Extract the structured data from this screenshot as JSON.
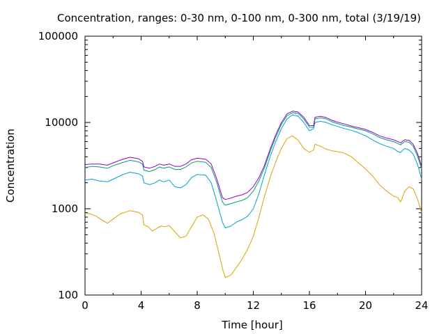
{
  "chart_data": {
    "type": "line",
    "title": "Concentration, ranges: 0-30 nm, 0-100 nm, 0-300 nm, total (3/19/19)",
    "xlabel": "Time [hour]",
    "ylabel": "Concentration",
    "xlim": [
      0,
      24
    ],
    "ylim": [
      100,
      100000
    ],
    "yscale": "log",
    "grid": false,
    "legend": "none",
    "x_ticks": [
      0,
      4,
      8,
      12,
      16,
      20,
      24
    ],
    "x_tick_labels": [
      "0",
      "4",
      "8",
      "12",
      "16",
      "20",
      "24"
    ],
    "y_ticks": [
      100,
      1000,
      10000,
      100000
    ],
    "y_tick_labels": [
      "100",
      "1000",
      "10000",
      "100000"
    ],
    "series": [
      {
        "color": "#e0a000",
        "points": [
          [
            0,
            890
          ],
          [
            0.4,
            870
          ],
          [
            0.8,
            820
          ],
          [
            1.2,
            740
          ],
          [
            1.6,
            680
          ],
          [
            2.0,
            760
          ],
          [
            2.5,
            870
          ],
          [
            3.2,
            950
          ],
          [
            3.8,
            910
          ],
          [
            4.1,
            850
          ],
          [
            4.2,
            650
          ],
          [
            4.5,
            620
          ],
          [
            4.8,
            550
          ],
          [
            5.1,
            590
          ],
          [
            5.4,
            630
          ],
          [
            5.7,
            620
          ],
          [
            6.0,
            640
          ],
          [
            6.4,
            540
          ],
          [
            6.8,
            460
          ],
          [
            7.2,
            480
          ],
          [
            7.6,
            620
          ],
          [
            8.0,
            800
          ],
          [
            8.4,
            850
          ],
          [
            8.8,
            760
          ],
          [
            9.2,
            520
          ],
          [
            9.6,
            280
          ],
          [
            9.85,
            190
          ],
          [
            10.0,
            160
          ],
          [
            10.4,
            170
          ],
          [
            10.8,
            210
          ],
          [
            11.2,
            260
          ],
          [
            11.6,
            340
          ],
          [
            12.0,
            480
          ],
          [
            12.4,
            800
          ],
          [
            12.8,
            1400
          ],
          [
            13.2,
            2300
          ],
          [
            13.6,
            3500
          ],
          [
            14.0,
            5000
          ],
          [
            14.4,
            6500
          ],
          [
            14.8,
            7000
          ],
          [
            15.2,
            6200
          ],
          [
            15.6,
            5000
          ],
          [
            16.0,
            4500
          ],
          [
            16.3,
            4800
          ],
          [
            16.4,
            5600
          ],
          [
            16.8,
            5300
          ],
          [
            17.2,
            4900
          ],
          [
            17.6,
            4700
          ],
          [
            18.0,
            4600
          ],
          [
            18.5,
            4400
          ],
          [
            19.0,
            4000
          ],
          [
            19.5,
            3400
          ],
          [
            20.0,
            2900
          ],
          [
            20.5,
            2400
          ],
          [
            21.0,
            1900
          ],
          [
            21.5,
            1600
          ],
          [
            22.0,
            1400
          ],
          [
            22.3,
            1350
          ],
          [
            22.5,
            1200
          ],
          [
            22.8,
            1600
          ],
          [
            23.1,
            1800
          ],
          [
            23.4,
            1700
          ],
          [
            23.7,
            1300
          ],
          [
            24.0,
            900
          ]
        ]
      },
      {
        "color": "#009ed8",
        "points": [
          [
            0,
            2150
          ],
          [
            0.5,
            2200
          ],
          [
            1.0,
            2100
          ],
          [
            1.6,
            2050
          ],
          [
            2.0,
            2200
          ],
          [
            2.6,
            2450
          ],
          [
            3.2,
            2650
          ],
          [
            3.8,
            2550
          ],
          [
            4.1,
            2400
          ],
          [
            4.2,
            2000
          ],
          [
            4.6,
            1900
          ],
          [
            5.0,
            2000
          ],
          [
            5.3,
            2150
          ],
          [
            5.6,
            2050
          ],
          [
            6.0,
            2150
          ],
          [
            6.4,
            1800
          ],
          [
            6.8,
            1750
          ],
          [
            7.2,
            1900
          ],
          [
            7.6,
            2300
          ],
          [
            8.0,
            2500
          ],
          [
            8.6,
            2450
          ],
          [
            9.0,
            2000
          ],
          [
            9.4,
            1200
          ],
          [
            9.8,
            700
          ],
          [
            10.0,
            600
          ],
          [
            10.4,
            630
          ],
          [
            10.8,
            700
          ],
          [
            11.2,
            750
          ],
          [
            11.6,
            820
          ],
          [
            12.0,
            1000
          ],
          [
            12.4,
            1500
          ],
          [
            12.8,
            2500
          ],
          [
            13.2,
            4000
          ],
          [
            13.6,
            6000
          ],
          [
            14.0,
            8500
          ],
          [
            14.4,
            11000
          ],
          [
            14.8,
            12300
          ],
          [
            15.2,
            11800
          ],
          [
            15.6,
            10000
          ],
          [
            16.0,
            8000
          ],
          [
            16.3,
            8500
          ],
          [
            16.4,
            10000
          ],
          [
            16.8,
            10300
          ],
          [
            17.2,
            10000
          ],
          [
            17.6,
            9400
          ],
          [
            18.0,
            9000
          ],
          [
            18.5,
            8500
          ],
          [
            19.0,
            8100
          ],
          [
            19.5,
            7600
          ],
          [
            20.0,
            7000
          ],
          [
            20.5,
            6300
          ],
          [
            21.0,
            5700
          ],
          [
            21.5,
            5300
          ],
          [
            22.0,
            5000
          ],
          [
            22.3,
            4600
          ],
          [
            22.5,
            4500
          ],
          [
            22.8,
            5000
          ],
          [
            23.1,
            4800
          ],
          [
            23.4,
            4300
          ],
          [
            23.7,
            3300
          ],
          [
            24.0,
            2200
          ]
        ]
      },
      {
        "color": "#009e73",
        "points": [
          [
            0,
            3000
          ],
          [
            0.5,
            3100
          ],
          [
            1.0,
            3050
          ],
          [
            1.6,
            2950
          ],
          [
            2.0,
            3150
          ],
          [
            2.6,
            3400
          ],
          [
            3.2,
            3650
          ],
          [
            3.8,
            3500
          ],
          [
            4.1,
            3300
          ],
          [
            4.2,
            2800
          ],
          [
            4.6,
            2700
          ],
          [
            5.0,
            2850
          ],
          [
            5.3,
            3050
          ],
          [
            5.6,
            2950
          ],
          [
            6.0,
            3050
          ],
          [
            6.4,
            2850
          ],
          [
            6.8,
            2850
          ],
          [
            7.2,
            3050
          ],
          [
            7.6,
            3400
          ],
          [
            8.0,
            3550
          ],
          [
            8.6,
            3450
          ],
          [
            9.0,
            3000
          ],
          [
            9.4,
            2000
          ],
          [
            9.8,
            1200
          ],
          [
            10.0,
            1100
          ],
          [
            10.4,
            1150
          ],
          [
            10.8,
            1200
          ],
          [
            11.2,
            1250
          ],
          [
            11.6,
            1350
          ],
          [
            12.0,
            1600
          ],
          [
            12.4,
            2100
          ],
          [
            12.8,
            3000
          ],
          [
            13.2,
            4600
          ],
          [
            13.6,
            6800
          ],
          [
            14.0,
            9500
          ],
          [
            14.4,
            12000
          ],
          [
            14.8,
            13000
          ],
          [
            15.2,
            12700
          ],
          [
            15.6,
            11000
          ],
          [
            16.0,
            8800
          ],
          [
            16.3,
            8800
          ],
          [
            16.4,
            11000
          ],
          [
            16.8,
            11300
          ],
          [
            17.2,
            11000
          ],
          [
            17.6,
            10200
          ],
          [
            18.0,
            9700
          ],
          [
            18.5,
            9200
          ],
          [
            19.0,
            8800
          ],
          [
            19.5,
            8400
          ],
          [
            20.0,
            8000
          ],
          [
            20.5,
            7400
          ],
          [
            21.0,
            6700
          ],
          [
            21.5,
            6300
          ],
          [
            22.0,
            6000
          ],
          [
            22.3,
            5700
          ],
          [
            22.5,
            5500
          ],
          [
            22.8,
            6000
          ],
          [
            23.1,
            5900
          ],
          [
            23.4,
            5300
          ],
          [
            23.7,
            4100
          ],
          [
            24.0,
            2900
          ]
        ]
      },
      {
        "color": "#9400d3",
        "points": [
          [
            0,
            3250
          ],
          [
            0.5,
            3300
          ],
          [
            1.0,
            3300
          ],
          [
            1.6,
            3200
          ],
          [
            2.0,
            3400
          ],
          [
            2.6,
            3700
          ],
          [
            3.2,
            3950
          ],
          [
            3.8,
            3800
          ],
          [
            4.1,
            3550
          ],
          [
            4.2,
            3050
          ],
          [
            4.6,
            2950
          ],
          [
            5.0,
            3100
          ],
          [
            5.3,
            3300
          ],
          [
            5.6,
            3200
          ],
          [
            6.0,
            3300
          ],
          [
            6.4,
            3100
          ],
          [
            6.8,
            3100
          ],
          [
            7.2,
            3300
          ],
          [
            7.6,
            3700
          ],
          [
            8.0,
            3850
          ],
          [
            8.6,
            3750
          ],
          [
            9.0,
            3300
          ],
          [
            9.4,
            2200
          ],
          [
            9.8,
            1350
          ],
          [
            10.0,
            1280
          ],
          [
            10.4,
            1330
          ],
          [
            10.8,
            1400
          ],
          [
            11.2,
            1450
          ],
          [
            11.6,
            1550
          ],
          [
            12.0,
            1800
          ],
          [
            12.4,
            2300
          ],
          [
            12.8,
            3200
          ],
          [
            13.2,
            4900
          ],
          [
            13.6,
            7200
          ],
          [
            14.0,
            10000
          ],
          [
            14.4,
            12600
          ],
          [
            14.8,
            13500
          ],
          [
            15.2,
            13200
          ],
          [
            15.6,
            11500
          ],
          [
            16.0,
            9200
          ],
          [
            16.3,
            9200
          ],
          [
            16.4,
            11500
          ],
          [
            16.8,
            11800
          ],
          [
            17.2,
            11400
          ],
          [
            17.6,
            10600
          ],
          [
            18.0,
            10100
          ],
          [
            18.5,
            9600
          ],
          [
            19.0,
            9100
          ],
          [
            19.5,
            8700
          ],
          [
            20.0,
            8300
          ],
          [
            20.5,
            7700
          ],
          [
            21.0,
            7000
          ],
          [
            21.5,
            6600
          ],
          [
            22.0,
            6300
          ],
          [
            22.3,
            6000
          ],
          [
            22.5,
            5800
          ],
          [
            22.8,
            6300
          ],
          [
            23.1,
            6200
          ],
          [
            23.4,
            5600
          ],
          [
            23.7,
            4400
          ],
          [
            24.0,
            3100
          ]
        ]
      }
    ]
  }
}
